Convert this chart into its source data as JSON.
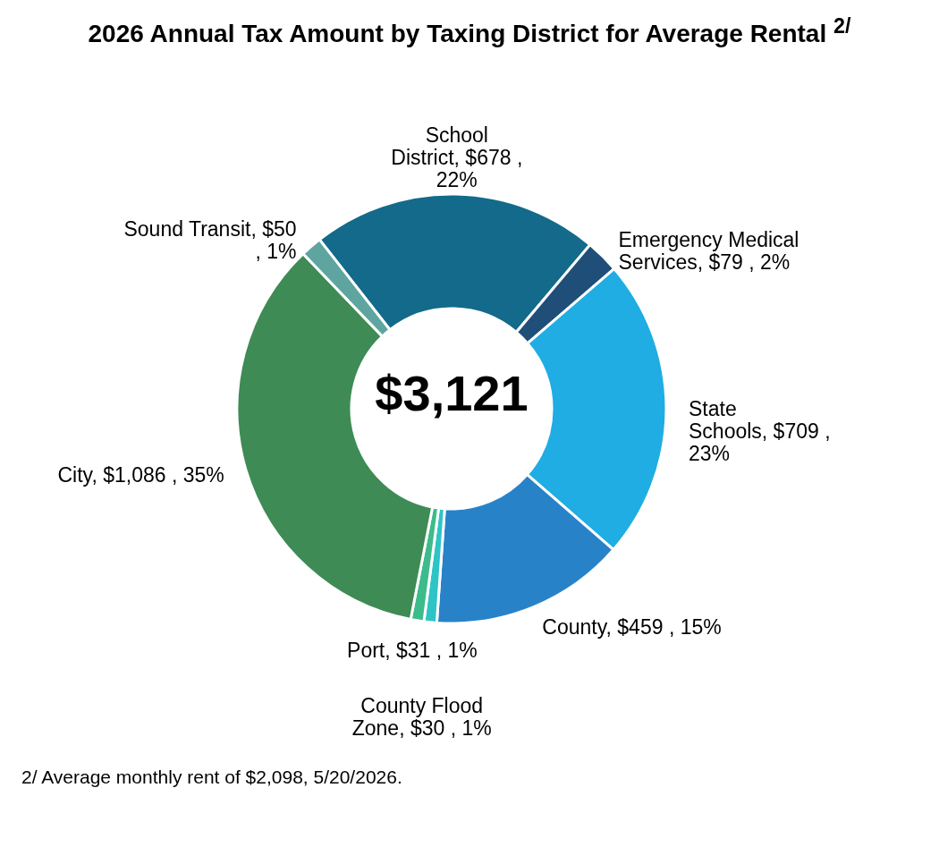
{
  "chart_data": {
    "type": "donut",
    "title": "2026 Annual Tax Amount by Taxing District for Average Rental $^{2/}$",
    "categories": [
      "School District",
      "Emergency Medical Services",
      "State Schools",
      "County",
      "County Flood Zone",
      "Port",
      "City",
      "Sound Transit"
    ],
    "values": [
      678,
      79,
      709,
      459,
      30,
      31,
      1086,
      50
    ],
    "value_labels": [
      "$678 , 22%",
      "$79 , 2%",
      "$709 , 23%",
      "$459 , 15%",
      "$30 , 1%",
      "$31 , 1%",
      "$1,086 , 35%",
      "$50 , 1%"
    ],
    "colors": [
      "#136a8a",
      "#1f4e79",
      "#1fade3",
      "#2882c8",
      "#2ec4c6",
      "#3dbb8b",
      "#3e8b55",
      "#5ea5a0"
    ],
    "annotations": [
      "$3,121",
      "2/ Average monthly rent of $2,098, 5/20/2026."
    ],
    "legend": false
  }
}
